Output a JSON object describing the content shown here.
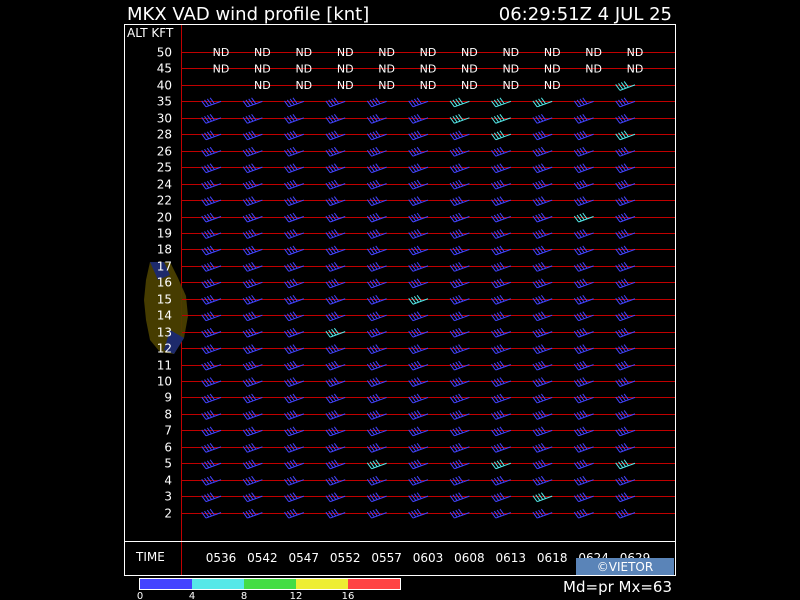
{
  "header": {
    "title": "MKX VAD wind profile [knt]",
    "timestamp": "06:29:51Z   4 JUL 25"
  },
  "axis": {
    "alt_label": "ALT KFT",
    "time_label": "TIME"
  },
  "footer": {
    "mode": "Md=pr Mx=63",
    "credit": "©VIETOR"
  },
  "colors": {
    "background": "#000000",
    "grid_line": "#c00000",
    "frame": "#ffffff",
    "text": "#ffffff"
  },
  "legend": {
    "ticks": [
      "0",
      "4",
      "8",
      "12",
      "16"
    ],
    "bins": [
      {
        "color": "#4444ff"
      },
      {
        "color": "#55e8e8"
      },
      {
        "color": "#44dd44"
      },
      {
        "color": "#eeee33"
      },
      {
        "color": "#ff4444"
      }
    ]
  },
  "chart_data": {
    "type": "wind_barb_profile",
    "title": "MKX VAD wind profile [knt]",
    "units": "knots",
    "times": [
      "0536",
      "0542",
      "0547",
      "0552",
      "0557",
      "0603",
      "0608",
      "0613",
      "0618",
      "0624",
      "0629"
    ],
    "altitudes_kft": [
      50,
      45,
      40,
      35,
      30,
      28,
      26,
      25,
      24,
      22,
      20,
      19,
      18,
      17,
      16,
      15,
      14,
      13,
      12,
      11,
      10,
      9,
      8,
      7,
      6,
      5,
      4,
      3,
      2
    ],
    "altitude_labels": [
      "50",
      "45",
      "40",
      "35",
      "30",
      "28",
      "26",
      "25",
      "24",
      "22",
      "20",
      "19",
      "18",
      "17",
      "16",
      "15",
      "14",
      "13",
      "12",
      "11",
      "10",
      "9",
      "8",
      "7",
      "6",
      "5",
      "4",
      "3",
      "2"
    ],
    "no_data_marker": "ND",
    "nd_cells": [
      {
        "alt": 50,
        "times": [
          "0536",
          "0542",
          "0547",
          "0552",
          "0557",
          "0603",
          "0608",
          "0613",
          "0618",
          "0624",
          "0629"
        ]
      },
      {
        "alt": 45,
        "times": [
          "0536",
          "0542",
          "0547",
          "0552",
          "0557",
          "0603",
          "0608",
          "0613",
          "0618",
          "0624",
          "0629"
        ]
      },
      {
        "alt": 40,
        "times": [
          "0542",
          "0547",
          "0552",
          "0557",
          "0603",
          "0608",
          "0613",
          "0618"
        ]
      }
    ],
    "wind_direction_deg": [
      [
        null,
        null,
        null,
        null,
        null,
        null,
        null,
        null,
        null,
        null,
        null
      ],
      [
        null,
        null,
        null,
        null,
        null,
        null,
        null,
        null,
        null,
        null,
        null
      ],
      [
        null,
        null,
        null,
        null,
        null,
        null,
        null,
        null,
        null,
        null,
        250
      ],
      [
        250,
        250,
        250,
        250,
        250,
        250,
        250,
        250,
        250,
        250,
        250
      ],
      [
        250,
        250,
        250,
        250,
        250,
        250,
        250,
        250,
        250,
        250,
        250
      ],
      [
        250,
        250,
        250,
        250,
        250,
        250,
        250,
        250,
        250,
        250,
        250
      ],
      [
        250,
        250,
        250,
        250,
        250,
        250,
        250,
        250,
        250,
        250,
        250
      ],
      [
        250,
        250,
        250,
        250,
        250,
        250,
        250,
        250,
        250,
        250,
        250
      ],
      [
        250,
        250,
        250,
        250,
        250,
        250,
        250,
        250,
        250,
        250,
        250
      ],
      [
        250,
        250,
        250,
        250,
        250,
        250,
        250,
        250,
        250,
        250,
        250
      ],
      [
        250,
        250,
        250,
        250,
        250,
        250,
        250,
        250,
        250,
        250,
        250
      ],
      [
        250,
        250,
        250,
        250,
        250,
        250,
        250,
        250,
        250,
        250,
        250
      ],
      [
        250,
        250,
        250,
        250,
        250,
        250,
        250,
        250,
        250,
        250,
        250
      ],
      [
        250,
        250,
        250,
        250,
        250,
        250,
        250,
        250,
        250,
        250,
        250
      ],
      [
        250,
        250,
        250,
        250,
        250,
        250,
        250,
        250,
        250,
        250,
        250
      ],
      [
        250,
        250,
        250,
        250,
        250,
        250,
        250,
        250,
        250,
        250,
        250
      ],
      [
        250,
        250,
        250,
        250,
        250,
        250,
        250,
        250,
        250,
        250,
        250
      ],
      [
        250,
        250,
        250,
        250,
        250,
        250,
        250,
        250,
        250,
        250,
        250
      ],
      [
        250,
        250,
        250,
        250,
        250,
        250,
        250,
        250,
        250,
        250,
        250
      ],
      [
        250,
        250,
        250,
        250,
        250,
        250,
        250,
        250,
        250,
        250,
        250
      ],
      [
        250,
        250,
        250,
        250,
        250,
        250,
        250,
        250,
        250,
        250,
        250
      ],
      [
        250,
        250,
        250,
        250,
        250,
        250,
        250,
        250,
        250,
        250,
        250
      ],
      [
        250,
        250,
        250,
        250,
        250,
        250,
        250,
        250,
        250,
        250,
        250
      ],
      [
        250,
        250,
        250,
        250,
        250,
        250,
        250,
        250,
        250,
        250,
        250
      ],
      [
        250,
        250,
        250,
        250,
        250,
        250,
        250,
        250,
        250,
        250,
        250
      ],
      [
        250,
        250,
        250,
        250,
        250,
        250,
        250,
        250,
        250,
        250,
        250
      ],
      [
        250,
        250,
        250,
        250,
        250,
        250,
        250,
        250,
        250,
        250,
        250
      ],
      [
        250,
        250,
        250,
        250,
        250,
        250,
        250,
        250,
        250,
        250,
        250
      ],
      [
        250,
        250,
        250,
        250,
        250,
        250,
        250,
        250,
        250,
        250,
        250
      ]
    ],
    "wind_speed_kt": [
      [
        null,
        null,
        null,
        null,
        null,
        null,
        null,
        null,
        null,
        null,
        null
      ],
      [
        null,
        null,
        null,
        null,
        null,
        null,
        null,
        null,
        null,
        null,
        null
      ],
      [
        null,
        null,
        null,
        null,
        null,
        null,
        null,
        null,
        null,
        null,
        40
      ],
      [
        40,
        40,
        40,
        40,
        40,
        40,
        40,
        40,
        40,
        40,
        40
      ],
      [
        40,
        40,
        40,
        40,
        40,
        40,
        40,
        40,
        40,
        40,
        40
      ],
      [
        40,
        40,
        40,
        40,
        40,
        40,
        40,
        40,
        40,
        40,
        40
      ],
      [
        40,
        40,
        40,
        40,
        40,
        40,
        40,
        40,
        40,
        40,
        40
      ],
      [
        40,
        40,
        40,
        40,
        40,
        40,
        40,
        40,
        40,
        40,
        40
      ],
      [
        40,
        40,
        40,
        40,
        40,
        40,
        40,
        40,
        40,
        40,
        40
      ],
      [
        40,
        40,
        40,
        40,
        40,
        40,
        40,
        40,
        40,
        40,
        40
      ],
      [
        40,
        40,
        40,
        40,
        40,
        40,
        40,
        40,
        40,
        40,
        40
      ],
      [
        40,
        40,
        40,
        40,
        40,
        40,
        40,
        40,
        40,
        40,
        40
      ],
      [
        40,
        40,
        40,
        40,
        40,
        40,
        40,
        40,
        40,
        40,
        40
      ],
      [
        40,
        40,
        40,
        40,
        40,
        40,
        40,
        40,
        40,
        40,
        40
      ],
      [
        40,
        40,
        40,
        40,
        40,
        40,
        40,
        40,
        40,
        40,
        40
      ],
      [
        40,
        40,
        40,
        40,
        40,
        40,
        40,
        40,
        40,
        40,
        40
      ],
      [
        40,
        40,
        40,
        40,
        40,
        40,
        40,
        40,
        40,
        40,
        40
      ],
      [
        40,
        40,
        40,
        40,
        40,
        40,
        40,
        40,
        40,
        40,
        40
      ],
      [
        40,
        40,
        40,
        40,
        40,
        40,
        40,
        40,
        40,
        40,
        40
      ],
      [
        40,
        40,
        40,
        40,
        40,
        40,
        40,
        40,
        40,
        40,
        40
      ],
      [
        40,
        40,
        40,
        40,
        40,
        40,
        40,
        40,
        40,
        40,
        40
      ],
      [
        40,
        40,
        40,
        40,
        40,
        40,
        40,
        40,
        40,
        40,
        40
      ],
      [
        40,
        40,
        40,
        40,
        40,
        40,
        40,
        40,
        40,
        40,
        40
      ],
      [
        40,
        40,
        40,
        40,
        40,
        40,
        40,
        40,
        40,
        40,
        40
      ],
      [
        40,
        40,
        40,
        40,
        40,
        40,
        40,
        40,
        40,
        40,
        40
      ],
      [
        40,
        40,
        40,
        40,
        40,
        40,
        40,
        40,
        40,
        40,
        40
      ],
      [
        40,
        40,
        40,
        40,
        40,
        40,
        40,
        40,
        40,
        40,
        40
      ],
      [
        40,
        40,
        40,
        40,
        40,
        40,
        40,
        40,
        40,
        40,
        40
      ],
      [
        40,
        40,
        40,
        40,
        40,
        40,
        40,
        40,
        40,
        40,
        40
      ]
    ],
    "rms_error_kt": [
      [
        null,
        null,
        null,
        null,
        null,
        null,
        null,
        null,
        null,
        null,
        null
      ],
      [
        null,
        null,
        null,
        null,
        null,
        null,
        null,
        null,
        null,
        null,
        null
      ],
      [
        null,
        null,
        null,
        null,
        null,
        null,
        null,
        null,
        null,
        null,
        5
      ],
      [
        0,
        0,
        0,
        0,
        0,
        0,
        5,
        5,
        5,
        0,
        0
      ],
      [
        0,
        0,
        0,
        0,
        0,
        0,
        5,
        5,
        0,
        0,
        0
      ],
      [
        0,
        0,
        0,
        0,
        0,
        0,
        0,
        5,
        0,
        0,
        5
      ],
      [
        0,
        0,
        0,
        0,
        0,
        0,
        0,
        0,
        0,
        0,
        0
      ],
      [
        0,
        0,
        0,
        0,
        0,
        0,
        0,
        0,
        0,
        0,
        0
      ],
      [
        0,
        0,
        0,
        0,
        0,
        0,
        0,
        0,
        0,
        0,
        0
      ],
      [
        0,
        0,
        0,
        0,
        0,
        0,
        0,
        0,
        0,
        0,
        0
      ],
      [
        0,
        0,
        0,
        0,
        0,
        0,
        0,
        0,
        0,
        5,
        0
      ],
      [
        0,
        0,
        0,
        0,
        0,
        0,
        0,
        0,
        0,
        0,
        0
      ],
      [
        0,
        0,
        0,
        0,
        0,
        0,
        0,
        0,
        0,
        0,
        0
      ],
      [
        0,
        0,
        0,
        0,
        0,
        0,
        0,
        0,
        0,
        0,
        0
      ],
      [
        0,
        0,
        0,
        0,
        0,
        0,
        0,
        0,
        0,
        0,
        0
      ],
      [
        0,
        0,
        0,
        0,
        0,
        5,
        0,
        0,
        0,
        0,
        0
      ],
      [
        0,
        0,
        0,
        0,
        0,
        0,
        0,
        0,
        0,
        0,
        0
      ],
      [
        0,
        0,
        0,
        5,
        0,
        0,
        0,
        0,
        0,
        0,
        0
      ],
      [
        0,
        0,
        0,
        0,
        0,
        0,
        0,
        0,
        0,
        0,
        0
      ],
      [
        0,
        0,
        0,
        0,
        0,
        0,
        0,
        0,
        0,
        0,
        0
      ],
      [
        0,
        0,
        0,
        0,
        0,
        0,
        0,
        0,
        0,
        0,
        0
      ],
      [
        0,
        0,
        0,
        0,
        0,
        0,
        0,
        0,
        0,
        0,
        0
      ],
      [
        0,
        0,
        0,
        0,
        0,
        0,
        0,
        0,
        0,
        0,
        0
      ],
      [
        0,
        0,
        0,
        0,
        0,
        0,
        0,
        0,
        0,
        0,
        0
      ],
      [
        0,
        0,
        0,
        0,
        0,
        0,
        0,
        0,
        0,
        0,
        0
      ],
      [
        0,
        0,
        0,
        0,
        5,
        0,
        0,
        5,
        0,
        0,
        5
      ],
      [
        0,
        0,
        0,
        0,
        0,
        0,
        0,
        0,
        0,
        0,
        0
      ],
      [
        0,
        0,
        0,
        0,
        0,
        0,
        0,
        0,
        5,
        0,
        0
      ],
      [
        0,
        0,
        0,
        0,
        0,
        0,
        0,
        0,
        0,
        0,
        0
      ]
    ],
    "rms_bins_kt": [
      0,
      4,
      8,
      12,
      16
    ],
    "legend_placement": "bottom-left",
    "grid": true
  }
}
